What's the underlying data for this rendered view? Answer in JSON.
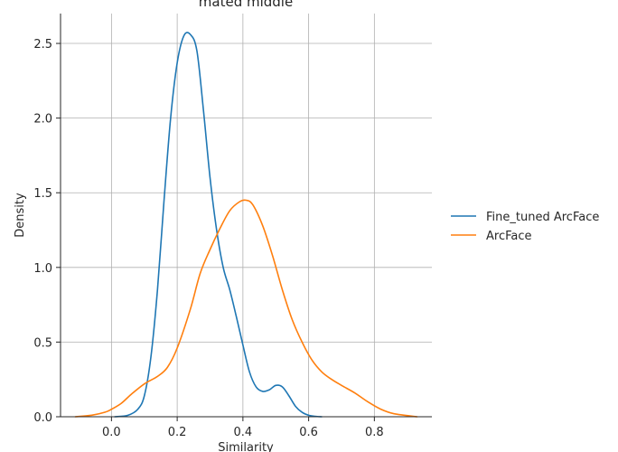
{
  "chart_data": {
    "type": "line",
    "title": "mated middle",
    "xlabel": "Similarity",
    "ylabel": "Density",
    "xlim": [
      -0.155,
      0.975
    ],
    "ylim": [
      0,
      2.7
    ],
    "xticks": [
      0.0,
      0.2,
      0.4,
      0.6,
      0.8
    ],
    "xtick_labels": [
      "0.0",
      "0.2",
      "0.4",
      "0.6",
      "0.8"
    ],
    "yticks": [
      0.0,
      0.5,
      1.0,
      1.5,
      2.0,
      2.5
    ],
    "ytick_labels": [
      "0.0",
      "0.5",
      "1.0",
      "1.5",
      "2.0",
      "2.5"
    ],
    "grid": true,
    "legend_position": "right",
    "series": [
      {
        "name": "Fine_tuned ArcFace",
        "color": "#1f77b4",
        "x": [
          0.01,
          0.05,
          0.08,
          0.1,
          0.12,
          0.14,
          0.16,
          0.18,
          0.2,
          0.22,
          0.24,
          0.26,
          0.28,
          0.3,
          0.32,
          0.34,
          0.36,
          0.38,
          0.4,
          0.42,
          0.44,
          0.46,
          0.48,
          0.5,
          0.52,
          0.54,
          0.56,
          0.58,
          0.6,
          0.62,
          0.64
        ],
        "y": [
          0.0,
          0.01,
          0.05,
          0.14,
          0.4,
          0.85,
          1.45,
          2.0,
          2.37,
          2.55,
          2.56,
          2.45,
          2.05,
          1.6,
          1.25,
          1.0,
          0.85,
          0.67,
          0.48,
          0.3,
          0.2,
          0.17,
          0.18,
          0.21,
          0.2,
          0.14,
          0.07,
          0.03,
          0.01,
          0.003,
          0.0
        ]
      },
      {
        "name": "ArcFace",
        "color": "#ff7f0e",
        "x": [
          -0.11,
          -0.06,
          -0.02,
          0.0,
          0.03,
          0.06,
          0.1,
          0.14,
          0.17,
          0.2,
          0.24,
          0.27,
          0.3,
          0.33,
          0.36,
          0.39,
          0.41,
          0.43,
          0.46,
          0.49,
          0.52,
          0.55,
          0.58,
          0.61,
          0.64,
          0.67,
          0.7,
          0.74,
          0.78,
          0.82,
          0.86,
          0.93
        ],
        "y": [
          0.0,
          0.01,
          0.03,
          0.05,
          0.09,
          0.15,
          0.22,
          0.27,
          0.33,
          0.46,
          0.72,
          0.96,
          1.12,
          1.26,
          1.38,
          1.44,
          1.45,
          1.42,
          1.28,
          1.08,
          0.85,
          0.65,
          0.5,
          0.38,
          0.3,
          0.25,
          0.21,
          0.16,
          0.1,
          0.05,
          0.02,
          0.0
        ]
      }
    ]
  }
}
